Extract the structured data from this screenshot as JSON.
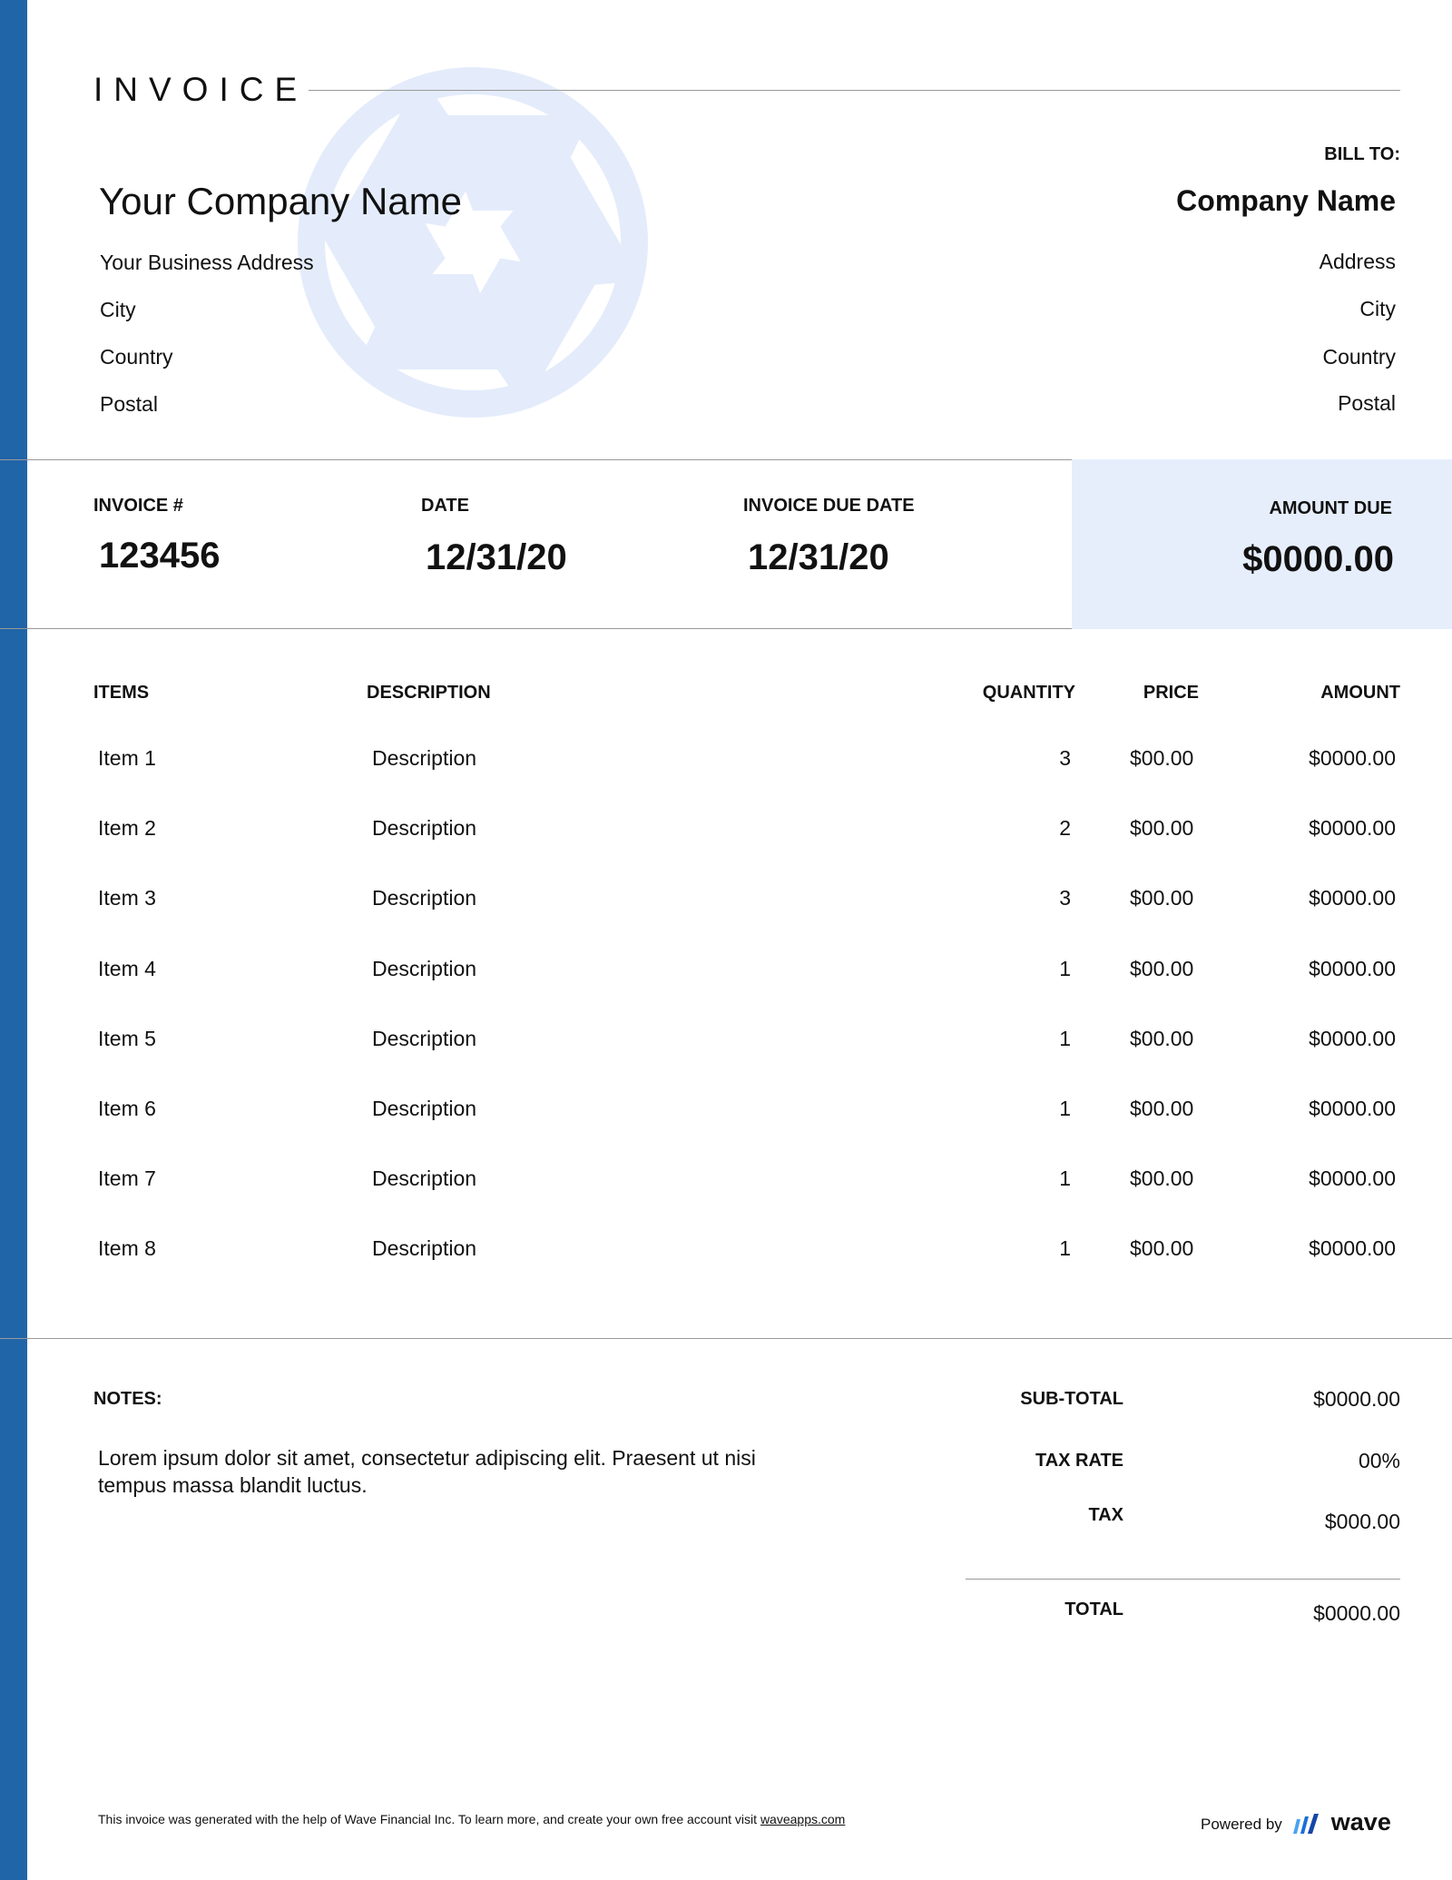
{
  "colors": {
    "accent": "#2065a8",
    "highlight": "#e6eefc",
    "watermark": "#e4ecfb"
  },
  "title": "INVOICE",
  "logo_icon": "camera-aperture-icon",
  "sender": {
    "name": "Your Company Name",
    "address": "Your Business Address",
    "city": "City",
    "country": "Country",
    "postal": "Postal"
  },
  "bill_to": {
    "label": "BILL TO:",
    "name": "Company Name",
    "address": "Address",
    "city": "City",
    "country": "Country",
    "postal": "Postal"
  },
  "meta": {
    "invoice_no_label": "INVOICE #",
    "invoice_no": "123456",
    "date_label": "DATE",
    "date": "12/31/20",
    "due_label": "INVOICE DUE DATE",
    "due": "12/31/20",
    "amount_due_label": "AMOUNT DUE",
    "amount_due": "$0000.00"
  },
  "table": {
    "headers": {
      "items": "ITEMS",
      "description": "DESCRIPTION",
      "quantity": "QUANTITY",
      "price": "PRICE",
      "amount": "AMOUNT"
    },
    "rows": [
      {
        "item": "Item 1",
        "description": "Description",
        "quantity": "3",
        "price": "$00.00",
        "amount": "$0000.00"
      },
      {
        "item": "Item 2",
        "description": "Description",
        "quantity": "2",
        "price": "$00.00",
        "amount": "$0000.00"
      },
      {
        "item": "Item 3",
        "description": "Description",
        "quantity": "3",
        "price": "$00.00",
        "amount": "$0000.00"
      },
      {
        "item": "Item 4",
        "description": "Description",
        "quantity": "1",
        "price": "$00.00",
        "amount": "$0000.00"
      },
      {
        "item": "Item 5",
        "description": "Description",
        "quantity": "1",
        "price": "$00.00",
        "amount": "$0000.00"
      },
      {
        "item": "Item 6",
        "description": "Description",
        "quantity": "1",
        "price": "$00.00",
        "amount": "$0000.00"
      },
      {
        "item": "Item 7",
        "description": "Description",
        "quantity": "1",
        "price": "$00.00",
        "amount": "$0000.00"
      },
      {
        "item": "Item 8",
        "description": "Description",
        "quantity": "1",
        "price": "$00.00",
        "amount": "$0000.00"
      }
    ]
  },
  "notes": {
    "label": "NOTES:",
    "line1": "Lorem ipsum dolor sit amet, consectetur adipiscing elit. Praesent ut nisi",
    "line2": "tempus massa blandit luctus."
  },
  "totals": {
    "subtotal_label": "SUB-TOTAL",
    "subtotal": "$0000.00",
    "tax_rate_label": "TAX RATE",
    "tax_rate": "00%",
    "tax_label": "TAX",
    "tax": "$000.00",
    "total_label": "TOTAL",
    "total": "$0000.00"
  },
  "footer": {
    "text": "This invoice was generated with the help of Wave Financial Inc. To learn more, and create your own free account visit ",
    "link": "waveapps.com",
    "powered_by": "Powered by",
    "brand": "wave"
  }
}
